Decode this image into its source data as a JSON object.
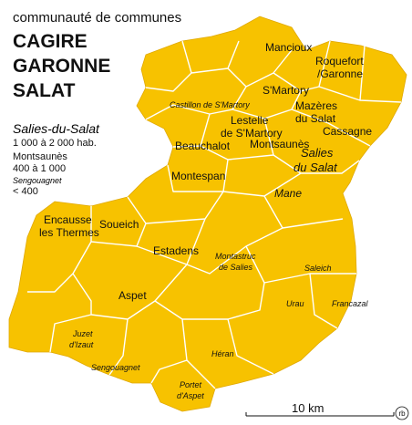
{
  "header": {
    "subtitle": "communauté de communes",
    "title_lines": [
      "CAGIRE",
      "GARONNE",
      "SALAT"
    ]
  },
  "legend": [
    {
      "sample": "Salies-du-Salat",
      "label": "1 000 à 2 000 hab."
    },
    {
      "sample": "Montsaunès",
      "label": "400 à 1 000"
    },
    {
      "sample": "Sengouagnet",
      "label": "< 400"
    }
  ],
  "places": [
    {
      "lines": [
        "Mancioux"
      ]
    },
    {
      "lines": [
        "Roquefort",
        "/Garonne"
      ]
    },
    {
      "lines": [
        "S'Martory"
      ]
    },
    {
      "lines": [
        "Mazères",
        "du Salat"
      ]
    },
    {
      "lines": [
        "Castillon de S'Martory"
      ]
    },
    {
      "lines": [
        "Lestelle",
        "de S'Martory"
      ]
    },
    {
      "lines": [
        "Cassagne"
      ]
    },
    {
      "lines": [
        "Beauchalot"
      ]
    },
    {
      "lines": [
        "Montsaunès"
      ]
    },
    {
      "lines": [
        "Salies",
        "du Salat"
      ]
    },
    {
      "lines": [
        "Montespan"
      ]
    },
    {
      "lines": [
        "Mane"
      ]
    },
    {
      "lines": [
        "Encausse",
        "les Thermes"
      ]
    },
    {
      "lines": [
        "Soueich"
      ]
    },
    {
      "lines": [
        "Estadens"
      ]
    },
    {
      "lines": [
        "Montastruc",
        "de Salies"
      ]
    },
    {
      "lines": [
        "Saleich"
      ]
    },
    {
      "lines": [
        "Aspet"
      ]
    },
    {
      "lines": [
        "Urau"
      ]
    },
    {
      "lines": [
        "Francazal"
      ]
    },
    {
      "lines": [
        "Juzet",
        "d'Izaut"
      ]
    },
    {
      "lines": [
        "Sengouagnet"
      ]
    },
    {
      "lines": [
        "Héran"
      ]
    },
    {
      "lines": [
        "Portet",
        "d'Aspet"
      ]
    }
  ],
  "scale": {
    "label": "10 km"
  },
  "credit": "rb"
}
